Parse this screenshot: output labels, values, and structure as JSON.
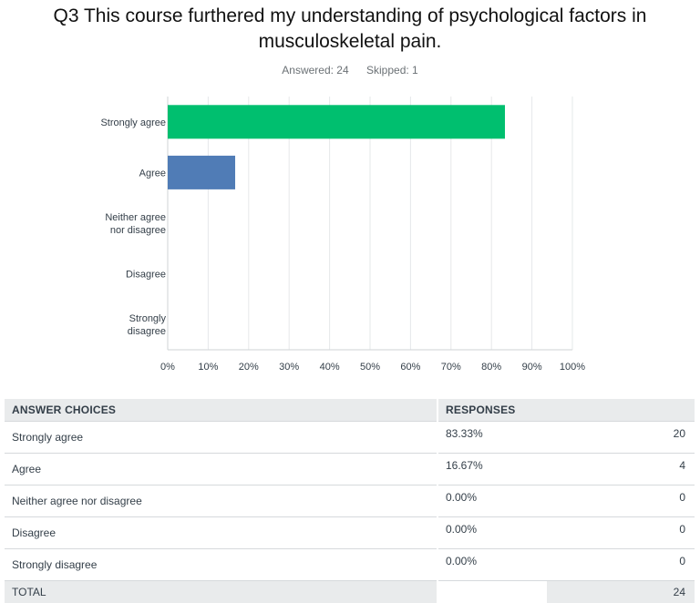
{
  "title_lines": [
    "Q3 This course furthered my understanding of psychological factors in",
    "musculoskeletal pain."
  ],
  "answered": "Answered: 24",
  "skipped": "Skipped: 1",
  "chart_data": {
    "type": "bar",
    "orientation": "horizontal",
    "categories": [
      [
        "Strongly agree"
      ],
      [
        "Agree"
      ],
      [
        "Neither agree",
        "nor disagree"
      ],
      [
        "Disagree"
      ],
      [
        "Strongly",
        "disagree"
      ]
    ],
    "values": [
      83.33,
      16.67,
      0,
      0,
      0
    ],
    "colors": [
      "#00bf6f",
      "#507cb6",
      "#f9be00",
      "#6bc8cd",
      "#ff8b4f"
    ],
    "xlim": [
      0,
      100
    ],
    "xticks": [
      "0%",
      "10%",
      "20%",
      "30%",
      "40%",
      "50%",
      "60%",
      "70%",
      "80%",
      "90%",
      "100%"
    ],
    "grid": true,
    "gridColor": "#e6e8ea"
  },
  "table": {
    "headers": [
      "ANSWER CHOICES",
      "RESPONSES"
    ],
    "rows": [
      {
        "choice": "Strongly agree",
        "percent": "83.33%",
        "count": "20"
      },
      {
        "choice": "Agree",
        "percent": "16.67%",
        "count": "4"
      },
      {
        "choice": "Neither agree nor disagree",
        "percent": "0.00%",
        "count": "0"
      },
      {
        "choice": "Disagree",
        "percent": "0.00%",
        "count": "0"
      },
      {
        "choice": "Strongly disagree",
        "percent": "0.00%",
        "count": "0"
      }
    ],
    "total_label": "TOTAL",
    "total_count": "24"
  }
}
